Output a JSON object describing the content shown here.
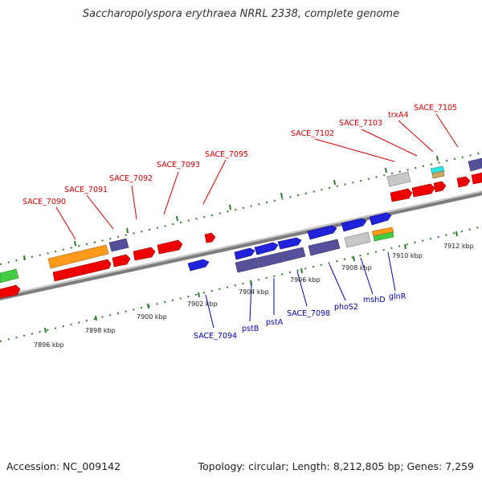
{
  "title": "Saccharopolyspora erythraea NRRL 2338, complete genome",
  "footer": {
    "accession": "Accession: NC_009142",
    "summary": "Topology: circular; Length: 8,212,805 bp; Genes: 7,259"
  },
  "colors": {
    "upper_label": "#cc0000",
    "lower_label": "#0000aa",
    "backbone": "#8a8a8a",
    "tick": "#2d7a2d"
  },
  "tick_labels": [
    "7896 kbp",
    "7898 kbp",
    "7900 kbp",
    "7902 kbp",
    "7904 kbp",
    "7906 kbp",
    "7908 kbp",
    "7910 kbp",
    "7912 kbp"
  ],
  "upper_labels": [
    "SACE_7090",
    "SACE_7091",
    "SACE_7092",
    "SACE_7093",
    "SACE_7095",
    "SACE_7102",
    "SACE_7103",
    "trxA4",
    "SACE_7105"
  ],
  "lower_labels": [
    "SACE_7094",
    "pstB",
    "pstA",
    "SACE_7098",
    "phoS2",
    "mshD",
    "glnR"
  ]
}
